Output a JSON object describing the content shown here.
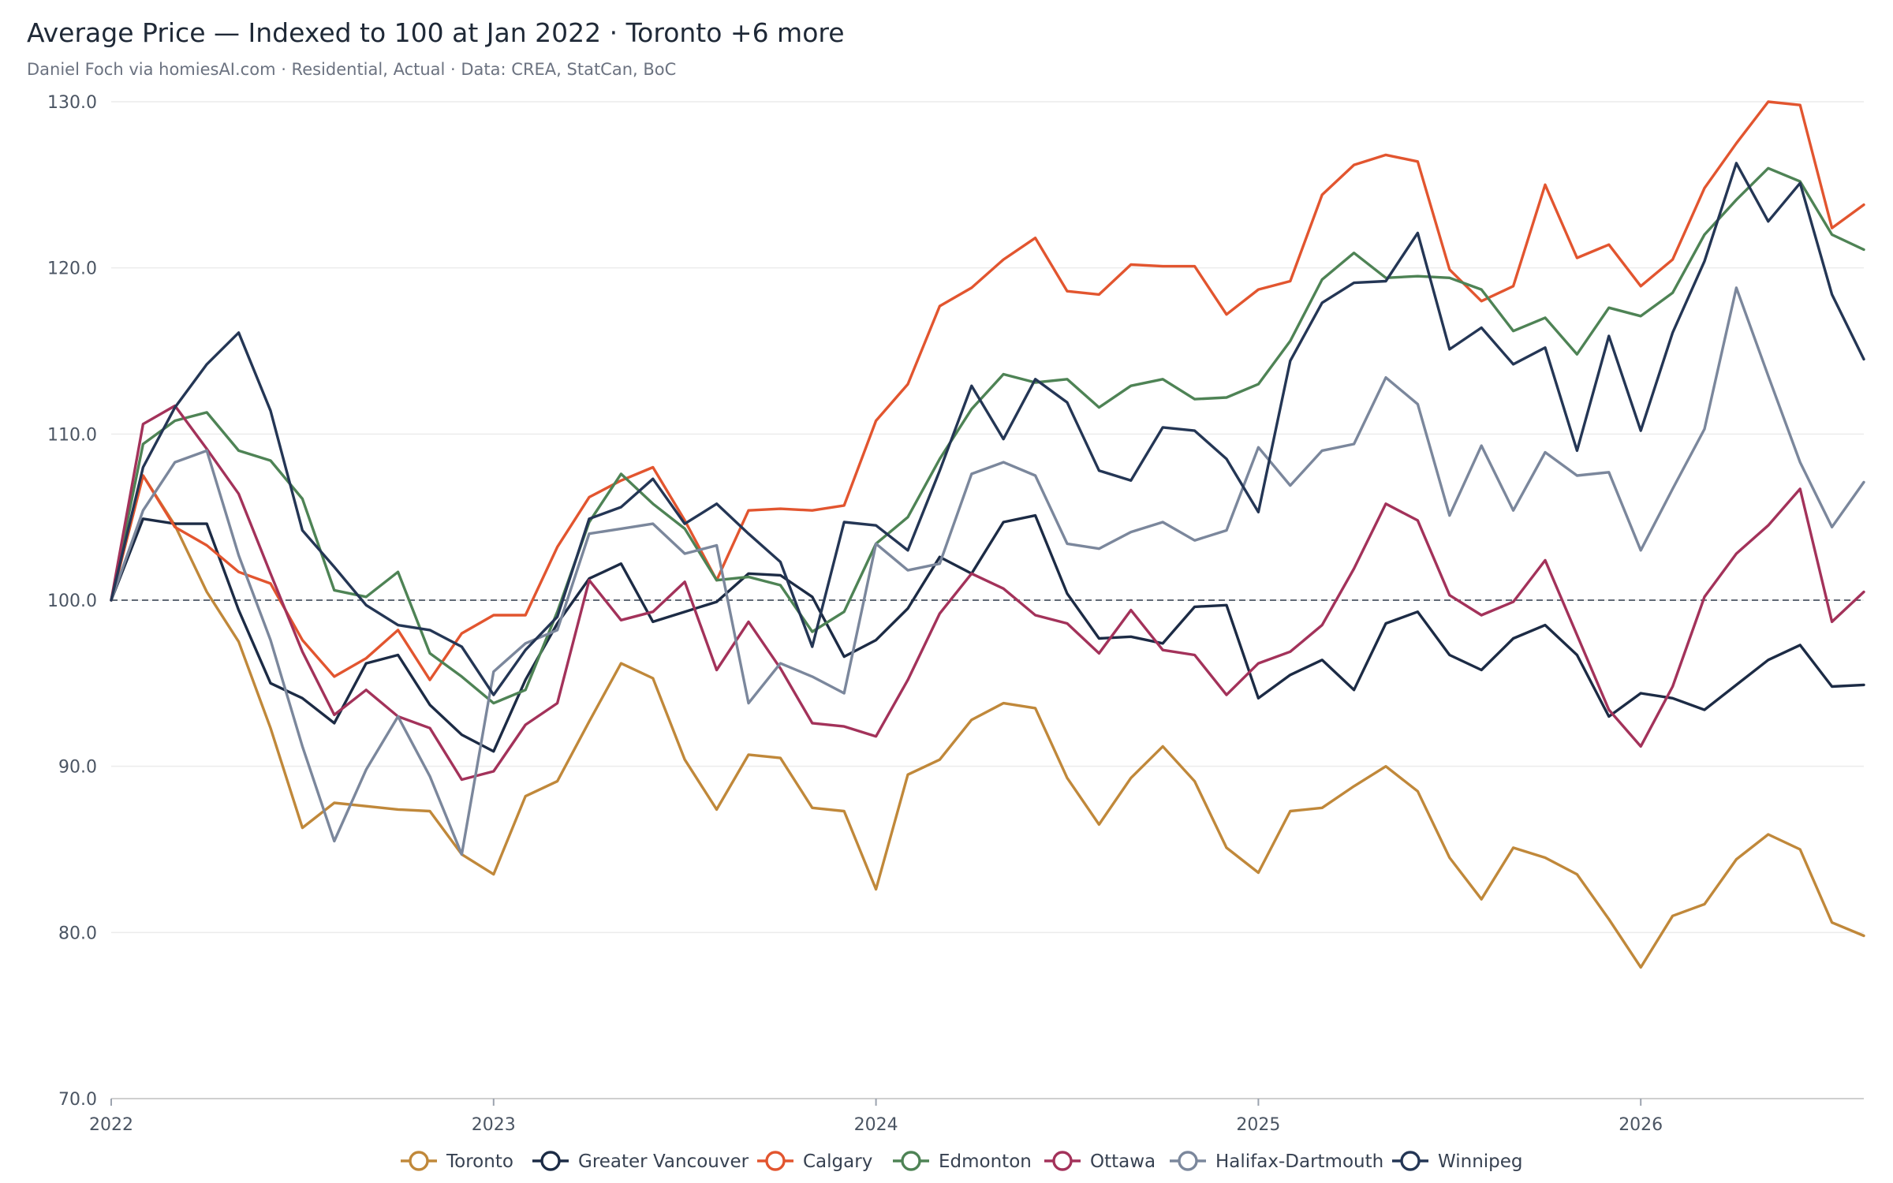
{
  "header": {
    "title": "Average Price — Indexed to 100 at Jan 2022 · Toronto +6 more",
    "subtitle": "Daniel Foch via homiesAI.com  ·  Residential, Actual · Data: CREA, StatCan, BoC"
  },
  "chart_data": {
    "type": "line",
    "title": "Average Price — Indexed to 100 at Jan 2022 · Toronto +6 more",
    "subtitle": "Daniel Foch via homiesAI.com  ·  Residential, Actual · Data: CREA, StatCan, BoC",
    "ylim": [
      70,
      130
    ],
    "y_ticks": [
      "70.0",
      "80.0",
      "90.0",
      "100.0",
      "110.0",
      "120.0",
      "130.0"
    ],
    "x_ticks": [
      "2022",
      "2023",
      "2024",
      "2025",
      "2026"
    ],
    "x_start": "2022-01",
    "x_end": "2026-08",
    "x_frequency": "monthly",
    "grid": true,
    "baseline": 100,
    "legend_position": "bottom",
    "series": [
      {
        "name": "Toronto",
        "color": "#c0883a",
        "values": [
          100.0,
          107.5,
          104.5,
          100.5,
          97.5,
          92.3,
          86.3,
          87.8,
          87.6,
          87.4,
          87.3,
          84.7,
          83.5,
          88.2,
          89.1,
          92.7,
          96.2,
          95.3,
          90.4,
          87.4,
          90.7,
          90.5,
          87.5,
          87.3,
          82.6,
          89.5,
          90.4,
          92.8,
          93.8,
          93.5,
          89.3,
          86.5,
          89.3,
          91.2,
          89.1,
          85.1,
          83.6,
          87.3,
          87.5,
          88.8,
          90.0,
          88.5,
          84.5,
          82.0,
          85.1,
          84.5,
          83.5,
          80.8,
          77.9,
          81.0,
          81.7,
          84.4,
          85.9,
          85.0,
          80.6,
          79.8
        ]
      },
      {
        "name": "Greater Vancouver",
        "color": "#1c2b45",
        "values": [
          100.0,
          104.9,
          104.6,
          104.6,
          99.4,
          95.0,
          94.1,
          92.6,
          96.2,
          96.7,
          93.7,
          91.9,
          90.9,
          95.2,
          98.6,
          101.3,
          102.2,
          98.7,
          99.3,
          99.9,
          101.6,
          101.5,
          100.2,
          96.6,
          97.6,
          99.5,
          102.6,
          101.6,
          104.7,
          105.1,
          100.4,
          97.7,
          97.8,
          97.4,
          99.6,
          99.7,
          94.1,
          95.5,
          96.4,
          94.6,
          98.6,
          99.3,
          96.7,
          95.8,
          97.7,
          98.5,
          96.7,
          93.0,
          94.4,
          94.1,
          93.4,
          94.9,
          96.4,
          97.3,
          94.8,
          94.9
        ]
      },
      {
        "name": "Calgary",
        "color": "#e2552f",
        "values": [
          100.0,
          107.5,
          104.4,
          103.3,
          101.7,
          101.0,
          97.6,
          95.4,
          96.5,
          98.2,
          95.2,
          98.0,
          99.1,
          99.1,
          103.2,
          106.2,
          107.2,
          108.0,
          104.8,
          101.2,
          105.4,
          105.5,
          105.4,
          105.7,
          110.8,
          113.0,
          117.7,
          118.8,
          120.5,
          121.8,
          118.6,
          118.4,
          120.2,
          120.1,
          120.1,
          117.2,
          118.7,
          119.2,
          124.4,
          126.2,
          126.8,
          126.4,
          119.9,
          118.0,
          118.9,
          125.0,
          120.6,
          121.4,
          118.9,
          120.5,
          124.8,
          127.5,
          130.0,
          129.8,
          122.4,
          123.8
        ]
      },
      {
        "name": "Edmonton",
        "color": "#4e8355",
        "values": [
          100.0,
          109.4,
          110.8,
          111.3,
          109.0,
          108.4,
          106.1,
          100.6,
          100.2,
          101.7,
          96.8,
          95.4,
          93.8,
          94.6,
          99.3,
          104.7,
          107.6,
          105.8,
          104.3,
          101.2,
          101.4,
          100.9,
          98.1,
          99.3,
          103.4,
          105.0,
          108.5,
          111.5,
          113.6,
          113.1,
          113.3,
          111.6,
          112.9,
          113.3,
          112.1,
          112.2,
          113.0,
          115.6,
          119.3,
          120.9,
          119.4,
          119.5,
          119.4,
          118.7,
          116.2,
          117.0,
          114.8,
          117.6,
          117.1,
          118.5,
          122.0,
          124.1,
          126.0,
          125.2,
          122.0,
          121.1
        ]
      },
      {
        "name": "Ottawa",
        "color": "#a3325a",
        "values": [
          100.0,
          110.6,
          111.7,
          109.1,
          106.4,
          101.6,
          96.9,
          93.1,
          94.6,
          93.0,
          92.3,
          89.2,
          89.7,
          92.5,
          93.8,
          101.2,
          98.8,
          99.3,
          101.1,
          95.8,
          98.7,
          95.9,
          92.6,
          92.4,
          91.8,
          95.2,
          99.2,
          101.6,
          100.7,
          99.1,
          98.6,
          96.8,
          99.4,
          97.0,
          96.7,
          94.3,
          96.2,
          96.9,
          98.5,
          101.9,
          105.8,
          104.8,
          100.3,
          99.1,
          99.9,
          102.4,
          97.9,
          93.4,
          91.2,
          94.8,
          100.2,
          102.8,
          104.5,
          106.7,
          98.7,
          100.5
        ]
      },
      {
        "name": "Halifax-Dartmouth",
        "color": "#7b879c",
        "values": [
          100.0,
          105.4,
          108.3,
          109.0,
          102.7,
          97.6,
          91.2,
          85.5,
          89.8,
          93.0,
          89.4,
          84.7,
          95.7,
          97.4,
          98.2,
          104.0,
          104.3,
          104.6,
          102.8,
          103.3,
          93.8,
          96.2,
          95.4,
          94.4,
          103.4,
          101.8,
          102.2,
          107.6,
          108.3,
          107.5,
          103.4,
          103.1,
          104.1,
          104.7,
          103.6,
          104.2,
          109.2,
          106.9,
          109.0,
          109.4,
          113.4,
          111.8,
          105.1,
          109.3,
          105.4,
          108.9,
          107.5,
          107.7,
          103.0,
          106.7,
          110.3,
          118.8,
          113.5,
          108.3,
          104.4,
          107.1
        ]
      },
      {
        "name": "Winnipeg",
        "color": "#243655",
        "values": [
          100.0,
          108.0,
          111.6,
          114.2,
          116.1,
          111.4,
          104.2,
          102.0,
          99.7,
          98.5,
          98.2,
          97.2,
          94.3,
          97.0,
          99.0,
          104.9,
          105.6,
          107.3,
          104.6,
          105.8,
          104.0,
          102.3,
          97.2,
          104.7,
          104.5,
          103.0,
          107.8,
          112.9,
          109.7,
          113.3,
          111.9,
          107.8,
          107.2,
          110.4,
          110.2,
          108.5,
          105.3,
          114.4,
          117.9,
          119.1,
          119.2,
          122.1,
          115.1,
          116.4,
          114.2,
          115.2,
          109.0,
          115.9,
          110.2,
          116.1,
          120.4,
          126.3,
          122.8,
          125.1,
          118.4,
          114.5
        ]
      }
    ]
  }
}
